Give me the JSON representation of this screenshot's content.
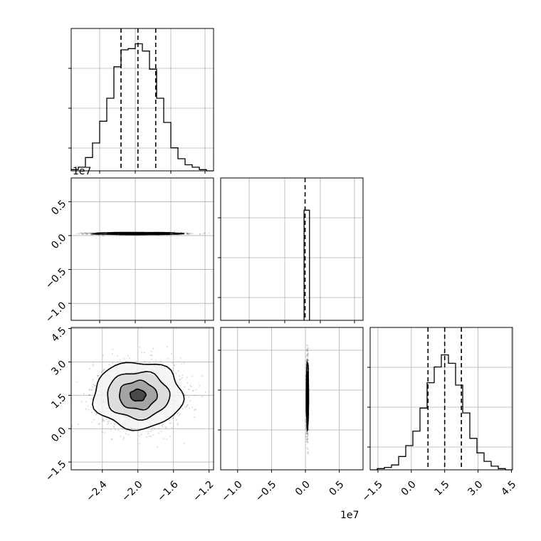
{
  "chart_data": [
    {
      "id": "hist_0",
      "type": "histogram",
      "grid": true,
      "xlim": [
        -2.75,
        -1.15
      ],
      "ylim": [
        0,
        1.0
      ],
      "bins": [
        {
          "lo": -2.75,
          "hi": -2.67,
          "v": 0.01
        },
        {
          "lo": -2.67,
          "hi": -2.59,
          "v": 0.03
        },
        {
          "lo": -2.59,
          "hi": -2.51,
          "v": 0.11
        },
        {
          "lo": -2.51,
          "hi": -2.43,
          "v": 0.23
        },
        {
          "lo": -2.43,
          "hi": -2.35,
          "v": 0.41
        },
        {
          "lo": -2.35,
          "hi": -2.27,
          "v": 0.6
        },
        {
          "lo": -2.27,
          "hi": -2.19,
          "v": 0.86
        },
        {
          "lo": -2.19,
          "hi": -2.11,
          "v": 1.0
        },
        {
          "lo": -2.11,
          "hi": -2.03,
          "v": 1.01
        },
        {
          "lo": -2.03,
          "hi": -1.95,
          "v": 1.05
        },
        {
          "lo": -1.95,
          "hi": -1.87,
          "v": 0.99
        },
        {
          "lo": -1.87,
          "hi": -1.79,
          "v": 0.84
        },
        {
          "lo": -1.79,
          "hi": -1.71,
          "v": 0.6
        },
        {
          "lo": -1.71,
          "hi": -1.63,
          "v": 0.4
        },
        {
          "lo": -1.63,
          "hi": -1.55,
          "v": 0.19
        },
        {
          "lo": -1.55,
          "hi": -1.47,
          "v": 0.1
        },
        {
          "lo": -1.47,
          "hi": -1.39,
          "v": 0.05
        },
        {
          "lo": -1.39,
          "hi": -1.31,
          "v": 0.03
        },
        {
          "lo": -1.31,
          "hi": -1.23,
          "v": 0.01
        },
        {
          "lo": -1.23,
          "hi": -1.15,
          "v": 0.0
        }
      ],
      "quantiles": [
        -2.19,
        -2.0,
        -1.8
      ]
    },
    {
      "id": "scatter_1_0",
      "type": "scatter",
      "grid": true,
      "xlim": [
        -2.75,
        -1.15
      ],
      "ylim": [
        -1.25,
        0.85
      ],
      "yticks": [
        "0.5",
        "0.0",
        "−0.5",
        "−1.0"
      ],
      "yticks_values": [
        0.5,
        0.0,
        -0.5,
        -1.0
      ],
      "offset_text": "1e7",
      "center": [
        -2.0,
        0.03
      ],
      "spread": [
        0.25,
        0.008
      ]
    },
    {
      "id": "hist_1",
      "type": "histogram",
      "grid": true,
      "xlim": [
        -1.25,
        0.85
      ],
      "ylim": [
        0,
        1.0
      ],
      "bins": [
        {
          "lo": -0.02,
          "hi": 0.06,
          "v": 0.91
        }
      ],
      "quantiles": [
        -0.005
      ]
    },
    {
      "id": "scatter_2_0",
      "type": "scatter",
      "grid": true,
      "xlim": [
        -2.75,
        -1.15
      ],
      "ylim": [
        -1.85,
        4.55
      ],
      "xticks": [
        "−2.4",
        "−2.0",
        "−1.6",
        "−1.2"
      ],
      "xticks_values": [
        -2.4,
        -2.0,
        -1.6,
        -1.2
      ],
      "yticks": [
        "4.5",
        "3.0",
        "1.5",
        "0.0",
        "−1.5"
      ],
      "yticks_values": [
        4.5,
        3.0,
        1.5,
        0.0,
        -1.5
      ],
      "center": [
        -2.0,
        1.5
      ],
      "spread": [
        0.25,
        0.75
      ],
      "contour_levels": [
        1.0,
        1.6,
        2.2,
        2.8
      ]
    },
    {
      "id": "scatter_2_1",
      "type": "scatter",
      "grid": true,
      "xlim": [
        -1.25,
        0.85
      ],
      "ylim": [
        -1.85,
        4.55
      ],
      "xticks": [
        "−1.0",
        "−0.5",
        "0.0",
        "0.5"
      ],
      "xticks_values": [
        -1.0,
        -0.5,
        0.0,
        0.5
      ],
      "offset_text": "1e7",
      "center": [
        0.03,
        1.5
      ],
      "spread": [
        0.008,
        0.75
      ]
    },
    {
      "id": "hist_2",
      "type": "histogram",
      "grid": true,
      "xlim": [
        -1.85,
        4.55
      ],
      "ylim": [
        0,
        1.0
      ],
      "xticks": [
        "−1.5",
        "0.0",
        "1.5",
        "3.0",
        "4.5"
      ],
      "xticks_values": [
        -1.5,
        0.0,
        1.5,
        3.0,
        4.5
      ],
      "bins": [
        {
          "lo": -1.85,
          "hi": -1.53,
          "v": 0.0
        },
        {
          "lo": -1.53,
          "hi": -1.21,
          "v": 0.01
        },
        {
          "lo": -1.21,
          "hi": -0.89,
          "v": 0.02
        },
        {
          "lo": -0.89,
          "hi": -0.57,
          "v": 0.04
        },
        {
          "lo": -0.57,
          "hi": -0.25,
          "v": 0.11
        },
        {
          "lo": -0.25,
          "hi": 0.07,
          "v": 0.2
        },
        {
          "lo": 0.07,
          "hi": 0.39,
          "v": 0.32
        },
        {
          "lo": 0.39,
          "hi": 0.71,
          "v": 0.51
        },
        {
          "lo": 0.71,
          "hi": 1.03,
          "v": 0.72
        },
        {
          "lo": 1.03,
          "hi": 1.35,
          "v": 0.85
        },
        {
          "lo": 1.35,
          "hi": 1.67,
          "v": 0.95
        },
        {
          "lo": 1.67,
          "hi": 1.99,
          "v": 0.88
        },
        {
          "lo": 1.99,
          "hi": 2.31,
          "v": 0.7
        },
        {
          "lo": 2.31,
          "hi": 2.63,
          "v": 0.47
        },
        {
          "lo": 2.63,
          "hi": 2.95,
          "v": 0.26
        },
        {
          "lo": 2.95,
          "hi": 3.27,
          "v": 0.14
        },
        {
          "lo": 3.27,
          "hi": 3.59,
          "v": 0.07
        },
        {
          "lo": 3.59,
          "hi": 3.91,
          "v": 0.03
        },
        {
          "lo": 3.91,
          "hi": 4.23,
          "v": 0.01
        },
        {
          "lo": 4.23,
          "hi": 4.55,
          "v": 0.0
        }
      ],
      "quantiles": [
        0.75,
        1.5,
        2.25
      ]
    }
  ],
  "global_labels": {
    "bottom_offset": "1e7"
  },
  "colors": {
    "axis": "#000000",
    "grid": "#b0b0b0",
    "point": "#000000",
    "contour": "#000000"
  }
}
